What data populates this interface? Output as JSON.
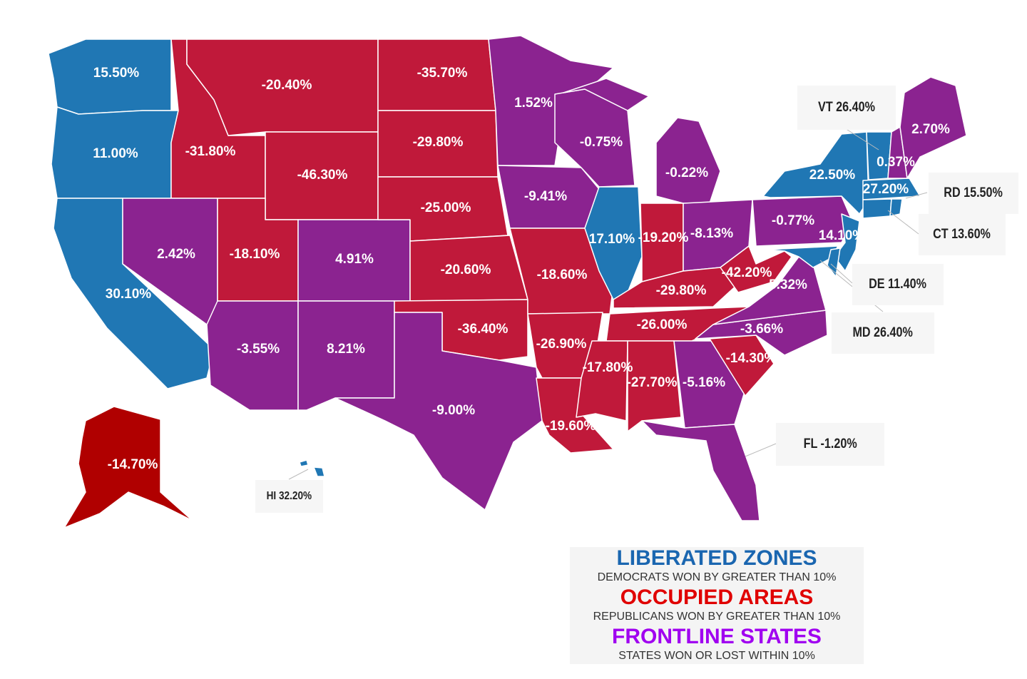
{
  "colors": {
    "liberated": "#2077b4",
    "occupied": "#c0193a",
    "frontline": "#8b2390",
    "alaska": "#b00000"
  },
  "map": {
    "states": [
      {
        "abbr": "WA",
        "label": "15.50%",
        "category": "liberated"
      },
      {
        "abbr": "OR",
        "label": "11.00%",
        "category": "liberated"
      },
      {
        "abbr": "CA",
        "label": "30.10%",
        "category": "liberated"
      },
      {
        "abbr": "ID",
        "label": "-31.80%",
        "category": "occupied"
      },
      {
        "abbr": "MT",
        "label": "-20.40%",
        "category": "occupied"
      },
      {
        "abbr": "WY",
        "label": "-46.30%",
        "category": "occupied"
      },
      {
        "abbr": "NV",
        "label": "2.42%",
        "category": "frontline"
      },
      {
        "abbr": "UT",
        "label": "-18.10%",
        "category": "occupied"
      },
      {
        "abbr": "CO",
        "label": "4.91%",
        "category": "frontline"
      },
      {
        "abbr": "AZ",
        "label": "-3.55%",
        "category": "frontline"
      },
      {
        "abbr": "NM",
        "label": "8.21%",
        "category": "frontline"
      },
      {
        "abbr": "ND",
        "label": "-35.70%",
        "category": "occupied"
      },
      {
        "abbr": "SD",
        "label": "-29.80%",
        "category": "occupied"
      },
      {
        "abbr": "NE",
        "label": "-25.00%",
        "category": "occupied"
      },
      {
        "abbr": "KS",
        "label": "-20.60%",
        "category": "occupied"
      },
      {
        "abbr": "OK",
        "label": "-36.40%",
        "category": "occupied"
      },
      {
        "abbr": "TX",
        "label": "-9.00%",
        "category": "frontline"
      },
      {
        "abbr": "MN",
        "label": "1.52%",
        "category": "frontline"
      },
      {
        "abbr": "IA",
        "label": "-9.41%",
        "category": "frontline"
      },
      {
        "abbr": "MO",
        "label": "-18.60%",
        "category": "occupied"
      },
      {
        "abbr": "AR",
        "label": "-26.90%",
        "category": "occupied"
      },
      {
        "abbr": "LA",
        "label": "-19.60%",
        "category": "occupied"
      },
      {
        "abbr": "WI",
        "label": "-0.75%",
        "category": "frontline"
      },
      {
        "abbr": "IL",
        "label": "17.10%",
        "category": "liberated"
      },
      {
        "abbr": "MI",
        "label": "-0.22%",
        "category": "frontline"
      },
      {
        "abbr": "IN",
        "label": "-19.20%",
        "category": "occupied"
      },
      {
        "abbr": "OH",
        "label": "-8.13%",
        "category": "frontline"
      },
      {
        "abbr": "KY",
        "label": "-29.80%",
        "category": "occupied"
      },
      {
        "abbr": "TN",
        "label": "-26.00%",
        "category": "occupied"
      },
      {
        "abbr": "MS",
        "label": "-17.80%",
        "category": "occupied"
      },
      {
        "abbr": "AL",
        "label": "-27.70%",
        "category": "occupied"
      },
      {
        "abbr": "GA",
        "label": "-5.16%",
        "category": "frontline"
      },
      {
        "abbr": "FL",
        "label": "",
        "category": "frontline"
      },
      {
        "abbr": "SC",
        "label": "-14.30%",
        "category": "occupied"
      },
      {
        "abbr": "NC",
        "label": "-3.66%",
        "category": "frontline"
      },
      {
        "abbr": "VA",
        "label": "5.32%",
        "category": "frontline"
      },
      {
        "abbr": "WV",
        "label": "-42.20%",
        "category": "occupied"
      },
      {
        "abbr": "PA",
        "label": "-0.77%",
        "category": "frontline"
      },
      {
        "abbr": "NY",
        "label": "22.50%",
        "category": "liberated"
      },
      {
        "abbr": "NJ",
        "label": "14.10%",
        "category": "liberated"
      },
      {
        "abbr": "MD",
        "label": "",
        "category": "liberated"
      },
      {
        "abbr": "DE",
        "label": "",
        "category": "liberated"
      },
      {
        "abbr": "VT",
        "label": "",
        "category": "liberated"
      },
      {
        "abbr": "NH",
        "label": "0.37%",
        "category": "frontline"
      },
      {
        "abbr": "ME",
        "label": "2.70%",
        "category": "frontline"
      },
      {
        "abbr": "MA",
        "label": "27.20%",
        "category": "liberated"
      },
      {
        "abbr": "CT",
        "label": "",
        "category": "liberated"
      },
      {
        "abbr": "RI",
        "label": "",
        "category": "liberated"
      },
      {
        "abbr": "AK",
        "label": "-14.70%",
        "category": "alaska"
      },
      {
        "abbr": "HI",
        "label": "",
        "category": "liberated"
      }
    ],
    "callouts": {
      "vt": "VT 26.40%",
      "rd": "RD 15.50%",
      "ct": "CT 13.60%",
      "de": "DE 11.40%",
      "md": "MD 26.40%",
      "fl": "FL -1.20%",
      "hi": "HI 32.20%"
    }
  },
  "legend": {
    "liberated_title": "LIBERATED ZONES",
    "liberated_desc": "DEMOCRATS WON BY GREATER THAN 10%",
    "occupied_title": "OCCUPIED AREAS",
    "occupied_desc": "REPUBLICANS WON BY GREATER THAN 10%",
    "frontline_title": "FRONTLINE STATES",
    "frontline_desc": "STATES WON OR LOST WITHIN 10%",
    "liberated_color": "#1a66b0",
    "occupied_color": "#e00000",
    "frontline_color": "#a000f0"
  }
}
